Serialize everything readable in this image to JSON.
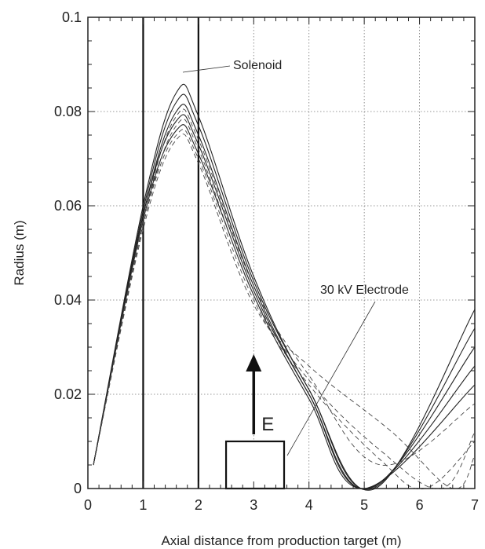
{
  "chart_data": {
    "type": "line",
    "title": "",
    "xlabel": "Axial distance from production target (m)",
    "ylabel": "Radius (m)",
    "xlim": [
      0,
      7
    ],
    "ylim": [
      0,
      0.1
    ],
    "x_ticks": [
      "0",
      "1",
      "2",
      "3",
      "4",
      "5",
      "6",
      "7"
    ],
    "y_ticks": [
      "0",
      "0.02",
      "0.04",
      "0.06",
      "0.08",
      "0.1"
    ],
    "grid": true,
    "annotations": {
      "solenoid": "Solenoid",
      "electrode": "30 kV Electrode",
      "field": "E"
    },
    "solenoid_walls_x": [
      1,
      2
    ],
    "electrode_box": {
      "x0": 2.5,
      "x1": 3.55,
      "y0": 0,
      "y1": 0.01
    },
    "field_arrow": {
      "x": 3.0,
      "y0": 0.0115,
      "y1": 0.0285
    },
    "series": [
      {
        "style": "solid",
        "x": [
          0.1,
          1.0,
          1.6,
          2.0,
          3.0,
          4.0,
          5.2,
          7.0
        ],
        "y": [
          0.005,
          0.06,
          0.084,
          0.079,
          0.045,
          0.021,
          0.0,
          0.038
        ]
      },
      {
        "style": "solid",
        "x": [
          0.1,
          1.0,
          1.6,
          2.0,
          3.0,
          4.0,
          5.15,
          7.0
        ],
        "y": [
          0.005,
          0.059,
          0.082,
          0.077,
          0.044,
          0.021,
          0.0,
          0.034
        ]
      },
      {
        "style": "solid",
        "x": [
          0.1,
          1.0,
          1.6,
          2.0,
          3.0,
          4.0,
          5.1,
          7.0
        ],
        "y": [
          0.005,
          0.058,
          0.08,
          0.075,
          0.043,
          0.02,
          0.0,
          0.03
        ]
      },
      {
        "style": "solid",
        "x": [
          0.1,
          1.0,
          1.6,
          2.0,
          3.0,
          4.0,
          5.05,
          7.0
        ],
        "y": [
          0.005,
          0.058,
          0.078,
          0.073,
          0.042,
          0.02,
          0.0,
          0.026
        ]
      },
      {
        "style": "solid",
        "x": [
          0.1,
          1.0,
          1.6,
          2.0,
          3.0,
          4.0,
          5.0,
          7.0
        ],
        "y": [
          0.005,
          0.057,
          0.076,
          0.071,
          0.041,
          0.019,
          0.0,
          0.022
        ]
      },
      {
        "style": "dashed",
        "x": [
          0.1,
          1.0,
          1.6,
          2.0,
          3.0,
          4.0,
          5.3,
          7.0
        ],
        "y": [
          0.005,
          0.057,
          0.079,
          0.074,
          0.043,
          0.024,
          0.005,
          0.018
        ]
      },
      {
        "style": "dashed",
        "x": [
          0.1,
          1.0,
          1.6,
          2.0,
          3.0,
          4.0,
          5.3,
          6.4,
          7.0
        ],
        "y": [
          0.005,
          0.056,
          0.077,
          0.072,
          0.041,
          0.023,
          0.008,
          0.0,
          0.012
        ]
      },
      {
        "style": "dashed",
        "x": [
          0.1,
          1.0,
          1.6,
          2.0,
          3.0,
          4.0,
          5.3,
          6.1,
          7.0
        ],
        "y": [
          0.005,
          0.056,
          0.075,
          0.07,
          0.04,
          0.022,
          0.006,
          0.0,
          0.01
        ]
      },
      {
        "style": "dashed",
        "x": [
          0.1,
          1.0,
          1.6,
          2.0,
          3.0,
          4.0,
          5.5,
          6.6,
          7.0
        ],
        "y": [
          0.005,
          0.055,
          0.074,
          0.069,
          0.039,
          0.026,
          0.012,
          0.0,
          0.007
        ]
      }
    ]
  }
}
